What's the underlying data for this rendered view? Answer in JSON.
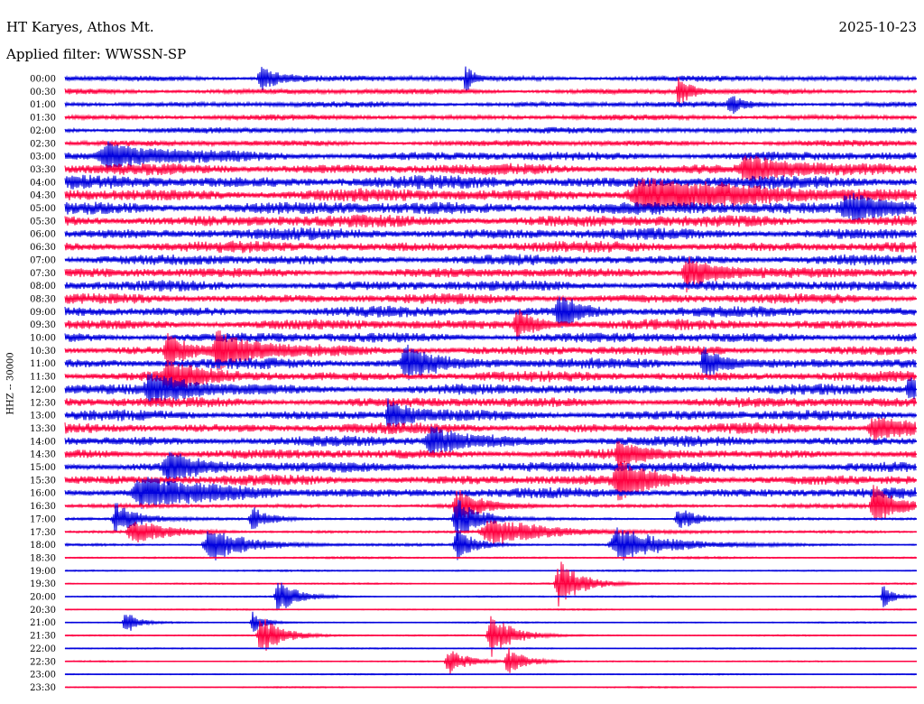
{
  "header": {
    "station": "HT Karyes, Athos Mt.",
    "date": "2025-10-23",
    "filter": "Applied filter: WWSSN-SP"
  },
  "chart_data": {
    "type": "line",
    "chart_kind": "helicorder",
    "ylabel": "HHZ -- 30000",
    "colors": {
      "odd_rows": "#0000dd",
      "even_rows": "#ff0040"
    },
    "row_labels": [
      "00:00",
      "00:30",
      "01:00",
      "01:30",
      "02:00",
      "02:30",
      "03:00",
      "03:30",
      "04:00",
      "04:30",
      "05:00",
      "05:30",
      "06:00",
      "06:30",
      "07:00",
      "07:30",
      "08:00",
      "08:30",
      "09:00",
      "09:30",
      "10:00",
      "10:30",
      "11:00",
      "11:30",
      "12:00",
      "12:30",
      "13:00",
      "13:30",
      "14:00",
      "14:30",
      "15:00",
      "15:30",
      "16:00",
      "16:30",
      "17:00",
      "17:30",
      "18:00",
      "18:30",
      "19:00",
      "19:30",
      "20:00",
      "20:30",
      "21:00",
      "21:30",
      "22:00",
      "22:30",
      "23:00",
      "23:30"
    ],
    "noise_level": [
      0.45,
      0.42,
      0.44,
      0.42,
      0.45,
      0.48,
      0.7,
      0.85,
      1.0,
      1.0,
      1.0,
      0.95,
      0.9,
      0.85,
      0.8,
      0.75,
      0.8,
      0.78,
      0.8,
      0.8,
      0.78,
      0.75,
      0.8,
      0.8,
      0.8,
      0.78,
      0.8,
      0.8,
      0.78,
      0.75,
      0.8,
      0.8,
      0.78,
      0.3,
      0.2,
      0.2,
      0.18,
      0.15,
      0.12,
      0.12,
      0.12,
      0.1,
      0.1,
      0.1,
      0.1,
      0.1,
      0.1,
      0.1
    ],
    "events": [
      {
        "row": 0,
        "x": 0.23,
        "amp": 1.3,
        "width": 0.01
      },
      {
        "row": 0,
        "x": 0.47,
        "amp": 1.5,
        "width": 0.004
      },
      {
        "row": 1,
        "x": 0.72,
        "amp": 1.6,
        "width": 0.006
      },
      {
        "row": 2,
        "x": 0.78,
        "amp": 1.1,
        "width": 0.006
      },
      {
        "row": 6,
        "x": 0.05,
        "amp": 1.2,
        "width": 0.03
      },
      {
        "row": 7,
        "x": 0.8,
        "amp": 1.5,
        "width": 0.02
      },
      {
        "row": 9,
        "x": 0.68,
        "amp": 1.5,
        "width": 0.05
      },
      {
        "row": 10,
        "x": 0.92,
        "amp": 1.3,
        "width": 0.03
      },
      {
        "row": 15,
        "x": 0.73,
        "amp": 1.8,
        "width": 0.015
      },
      {
        "row": 18,
        "x": 0.58,
        "amp": 2.0,
        "width": 0.01
      },
      {
        "row": 19,
        "x": 0.53,
        "amp": 1.6,
        "width": 0.01
      },
      {
        "row": 21,
        "x": 0.12,
        "amp": 1.7,
        "width": 0.01
      },
      {
        "row": 21,
        "x": 0.18,
        "amp": 1.8,
        "width": 0.02
      },
      {
        "row": 22,
        "x": 0.4,
        "amp": 1.8,
        "width": 0.015
      },
      {
        "row": 22,
        "x": 0.75,
        "amp": 1.8,
        "width": 0.01
      },
      {
        "row": 23,
        "x": 0.12,
        "amp": 1.5,
        "width": 0.015
      },
      {
        "row": 24,
        "x": 0.1,
        "amp": 1.6,
        "width": 0.02
      },
      {
        "row": 24,
        "x": 0.99,
        "amp": 1.4,
        "width": 0.006
      },
      {
        "row": 26,
        "x": 0.38,
        "amp": 1.6,
        "width": 0.01
      },
      {
        "row": 27,
        "x": 0.95,
        "amp": 1.3,
        "width": 0.02
      },
      {
        "row": 28,
        "x": 0.43,
        "amp": 1.4,
        "width": 0.02
      },
      {
        "row": 29,
        "x": 0.65,
        "amp": 1.4,
        "width": 0.01
      },
      {
        "row": 30,
        "x": 0.12,
        "amp": 1.5,
        "width": 0.015
      },
      {
        "row": 31,
        "x": 0.65,
        "amp": 2.0,
        "width": 0.015
      },
      {
        "row": 32,
        "x": 0.09,
        "amp": 1.6,
        "width": 0.03
      },
      {
        "row": 33,
        "x": 0.46,
        "amp": 1.8,
        "width": 0.012
      },
      {
        "row": 33,
        "x": 0.95,
        "amp": 2.2,
        "width": 0.012
      },
      {
        "row": 34,
        "x": 0.06,
        "amp": 1.6,
        "width": 0.012
      },
      {
        "row": 34,
        "x": 0.22,
        "amp": 1.2,
        "width": 0.01
      },
      {
        "row": 34,
        "x": 0.46,
        "amp": 2.2,
        "width": 0.012
      },
      {
        "row": 34,
        "x": 0.72,
        "amp": 1.2,
        "width": 0.01
      },
      {
        "row": 35,
        "x": 0.08,
        "amp": 1.2,
        "width": 0.02
      },
      {
        "row": 35,
        "x": 0.5,
        "amp": 1.5,
        "width": 0.03
      },
      {
        "row": 36,
        "x": 0.17,
        "amp": 1.8,
        "width": 0.02
      },
      {
        "row": 36,
        "x": 0.46,
        "amp": 1.6,
        "width": 0.01
      },
      {
        "row": 36,
        "x": 0.65,
        "amp": 1.8,
        "width": 0.025
      },
      {
        "row": 39,
        "x": 0.58,
        "amp": 2.4,
        "width": 0.012
      },
      {
        "row": 40,
        "x": 0.25,
        "amp": 1.8,
        "width": 0.01
      },
      {
        "row": 40,
        "x": 0.96,
        "amp": 1.2,
        "width": 0.006
      },
      {
        "row": 42,
        "x": 0.07,
        "amp": 1.4,
        "width": 0.006
      },
      {
        "row": 42,
        "x": 0.22,
        "amp": 1.2,
        "width": 0.006
      },
      {
        "row": 43,
        "x": 0.23,
        "amp": 2.0,
        "width": 0.012
      },
      {
        "row": 43,
        "x": 0.5,
        "amp": 2.2,
        "width": 0.012
      },
      {
        "row": 45,
        "x": 0.45,
        "amp": 1.4,
        "width": 0.01
      },
      {
        "row": 45,
        "x": 0.52,
        "amp": 1.4,
        "width": 0.01
      }
    ]
  }
}
